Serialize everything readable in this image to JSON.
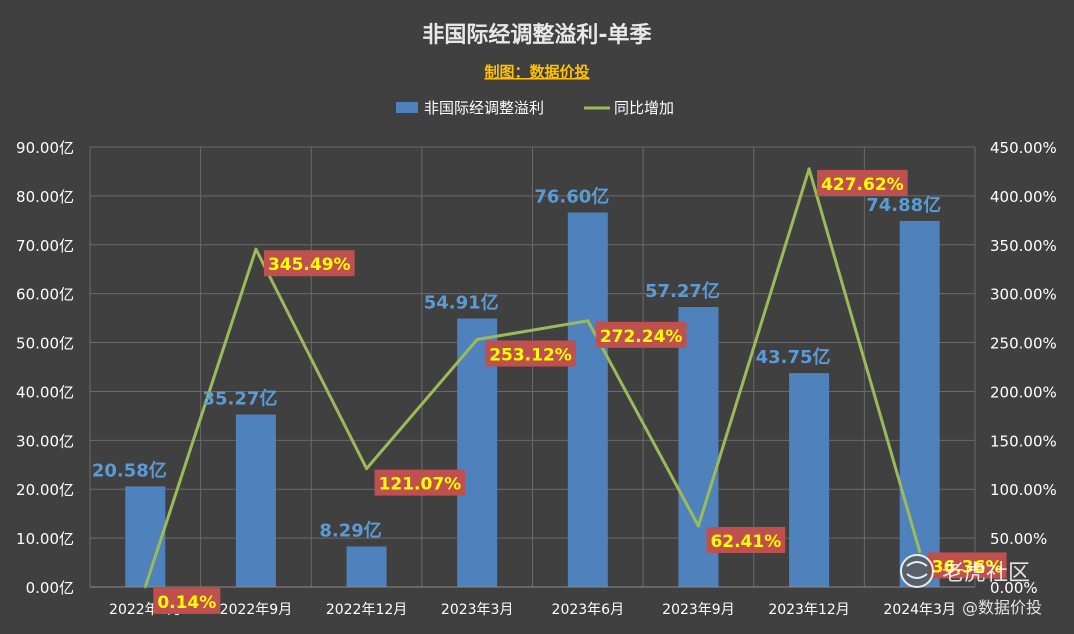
{
  "chart_data": {
    "type": "bar+line",
    "title": "非国际经调整溢利-单季",
    "subtitle": "制图：数据价投",
    "categories": [
      "2022年6月",
      "2022年9月",
      "2022年12月",
      "2023年3月",
      "2023年6月",
      "2023年9月",
      "2023年12月",
      "2024年3月"
    ],
    "series": [
      {
        "name": "非国际经调整溢利",
        "type": "bar",
        "axis": "left",
        "values": [
          20.58,
          35.27,
          8.29,
          54.91,
          76.6,
          57.27,
          43.75,
          74.88
        ],
        "labels": [
          "20.58亿",
          "35.27亿",
          "8.29亿",
          "54.91亿",
          "76.60亿",
          "57.27亿",
          "43.75亿",
          "74.88亿"
        ],
        "color": "#4F81BD"
      },
      {
        "name": "同比增加",
        "type": "line",
        "axis": "right",
        "values": [
          0.14,
          345.49,
          121.07,
          253.12,
          272.24,
          62.41,
          427.62,
          36.36
        ],
        "labels": [
          "0.14%",
          "345.49%",
          "121.07%",
          "253.12%",
          "272.24%",
          "62.41%",
          "427.62%",
          "36.36%"
        ],
        "color": "#9BBB59"
      }
    ],
    "y_left": {
      "min": 0,
      "max": 90,
      "step": 10,
      "tick_labels": [
        "0.00亿",
        "10.00亿",
        "20.00亿",
        "30.00亿",
        "40.00亿",
        "50.00亿",
        "60.00亿",
        "70.00亿",
        "80.00亿",
        "90.00亿"
      ]
    },
    "y_right": {
      "min": 0,
      "max": 450,
      "step": 50,
      "tick_labels": [
        "0.00%",
        "50.00%",
        "100.00%",
        "150.00%",
        "200.00%",
        "250.00%",
        "300.00%",
        "350.00%",
        "400.00%",
        "450.00%"
      ]
    },
    "grid": true,
    "legend": "top",
    "colors": {
      "background": "#404040",
      "grid": "#6a6a6a",
      "text": "#ffffff",
      "subtitle": "#FFC000",
      "bar_label": "#5B9BD5",
      "badge_bg": "#C0504D",
      "badge_text": "#FFFF00"
    }
  },
  "watermark": {
    "brand": "老虎社区",
    "handle": "@数据价投"
  }
}
